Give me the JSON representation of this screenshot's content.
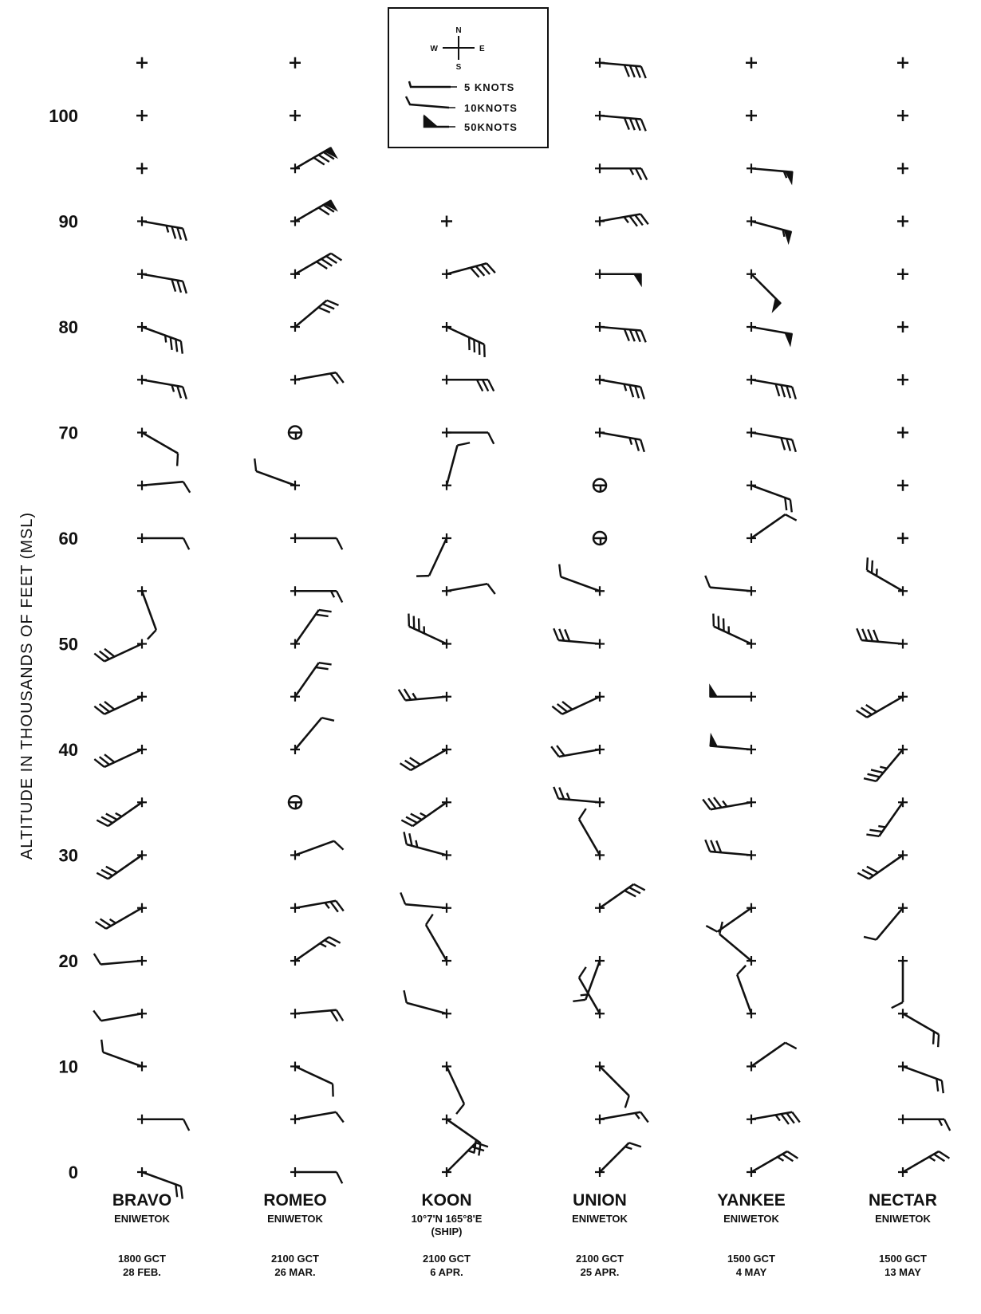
{
  "chart_data": {
    "type": "wind-barb profile",
    "ylabel": "ALTITUDE IN THOUSANDS OF FEET (MSL)",
    "ylim": [
      0,
      105
    ],
    "yticks": [
      0,
      10,
      20,
      30,
      40,
      50,
      60,
      70,
      80,
      90,
      100
    ],
    "legend": {
      "compass": {
        "n": "N",
        "s": "S",
        "e": "E",
        "w": "W"
      },
      "entries": [
        {
          "label": "5 KNOTS",
          "knots": 5
        },
        {
          "label": "10KNOTS",
          "knots": 10
        },
        {
          "label": "50KNOTS",
          "knots": 50
        }
      ]
    },
    "stations": [
      {
        "name": "BRAVO",
        "site": "ENIWETOK",
        "extra": "",
        "time": "1800 GCT",
        "date": "28 FEB.",
        "obs": [
          {
            "alt": 95,
            "calm": true
          },
          {
            "alt": 100,
            "calm": true
          },
          {
            "alt": 105,
            "calm": true
          },
          {
            "alt": 90,
            "dir": 100,
            "spd": 35
          },
          {
            "alt": 85,
            "dir": 100,
            "spd": 30
          },
          {
            "alt": 80,
            "dir": 110,
            "spd": 35
          },
          {
            "alt": 75,
            "dir": 100,
            "spd": 25
          },
          {
            "alt": 70,
            "dir": 120,
            "spd": 10
          },
          {
            "alt": 65,
            "dir": 85,
            "spd": 10
          },
          {
            "alt": 60,
            "dir": 90,
            "spd": 10
          },
          {
            "alt": 55,
            "dir": 160,
            "spd": 10
          },
          {
            "alt": 50,
            "dir": 245,
            "spd": 30
          },
          {
            "alt": 45,
            "dir": 245,
            "spd": 30
          },
          {
            "alt": 40,
            "dir": 245,
            "spd": 30
          },
          {
            "alt": 35,
            "dir": 235,
            "spd": 35
          },
          {
            "alt": 30,
            "dir": 235,
            "spd": 30
          },
          {
            "alt": 25,
            "dir": 240,
            "spd": 25
          },
          {
            "alt": 20,
            "dir": 265,
            "spd": 10
          },
          {
            "alt": 15,
            "dir": 260,
            "spd": 10
          },
          {
            "alt": 10,
            "dir": 290,
            "spd": 10
          },
          {
            "alt": 5,
            "dir": 90,
            "spd": 10
          },
          {
            "alt": 0,
            "dir": 110,
            "spd": 20
          }
        ]
      },
      {
        "name": "ROMEO",
        "site": "ENIWETOK",
        "extra": "",
        "time": "2100 GCT",
        "date": "26 MAR.",
        "obs": [
          {
            "alt": 100,
            "calm": true
          },
          {
            "alt": 105,
            "calm": true
          },
          {
            "alt": 95,
            "dir": 60,
            "spd": 80
          },
          {
            "alt": 90,
            "dir": 60,
            "spd": 70
          },
          {
            "alt": 85,
            "dir": 60,
            "spd": 40
          },
          {
            "alt": 80,
            "dir": 50,
            "spd": 30
          },
          {
            "alt": 75,
            "dir": 80,
            "spd": 20
          },
          {
            "alt": 70,
            "calm": true,
            "variable": true
          },
          {
            "alt": 65,
            "dir": 290,
            "spd": 10
          },
          {
            "alt": 60,
            "dir": 90,
            "spd": 10
          },
          {
            "alt": 55,
            "dir": 90,
            "spd": 15
          },
          {
            "alt": 50,
            "dir": 35,
            "spd": 20
          },
          {
            "alt": 45,
            "dir": 35,
            "spd": 20
          },
          {
            "alt": 40,
            "dir": 40,
            "spd": 10
          },
          {
            "alt": 35,
            "calm": true,
            "variable": true
          },
          {
            "alt": 30,
            "dir": 70,
            "spd": 10
          },
          {
            "alt": 25,
            "dir": 80,
            "spd": 25
          },
          {
            "alt": 20,
            "dir": 55,
            "spd": 25
          },
          {
            "alt": 15,
            "dir": 85,
            "spd": 20
          },
          {
            "alt": 10,
            "dir": 115,
            "spd": 10
          },
          {
            "alt": 5,
            "dir": 80,
            "spd": 10
          },
          {
            "alt": 0,
            "dir": 90,
            "spd": 10
          }
        ]
      },
      {
        "name": "KOON",
        "site": "10°7'N 165°8'E",
        "extra": "(SHIP)",
        "time": "2100 GCT",
        "date": "6 APR.",
        "obs": [
          {
            "alt": 90,
            "calm": true
          },
          {
            "alt": 85,
            "dir": 75,
            "spd": 40
          },
          {
            "alt": 80,
            "dir": 115,
            "spd": 40
          },
          {
            "alt": 75,
            "dir": 90,
            "spd": 30
          },
          {
            "alt": 70,
            "dir": 90,
            "spd": 10
          },
          {
            "alt": 65,
            "dir": 15,
            "spd": 10
          },
          {
            "alt": 60,
            "dir": 205,
            "spd": 10
          },
          {
            "alt": 55,
            "dir": 80,
            "spd": 10
          },
          {
            "alt": 50,
            "dir": 295,
            "spd": 35
          },
          {
            "alt": 45,
            "dir": 265,
            "spd": 25
          },
          {
            "alt": 40,
            "dir": 240,
            "spd": 30
          },
          {
            "alt": 35,
            "dir": 235,
            "spd": 35
          },
          {
            "alt": 30,
            "dir": 285,
            "spd": 25
          },
          {
            "alt": 25,
            "dir": 275,
            "spd": 10
          },
          {
            "alt": 20,
            "dir": 330,
            "spd": 10
          },
          {
            "alt": 15,
            "dir": 285,
            "spd": 10
          },
          {
            "alt": 10,
            "dir": 155,
            "spd": 10
          },
          {
            "alt": 5,
            "dir": 125,
            "spd": 20
          },
          {
            "alt": 0,
            "dir": 45,
            "spd": 25
          }
        ]
      },
      {
        "name": "UNION",
        "site": "ENIWETOK",
        "extra": "",
        "time": "2100 GCT",
        "date": "25 APR.",
        "obs": [
          {
            "alt": 105,
            "dir": 95,
            "spd": 40
          },
          {
            "alt": 100,
            "dir": 95,
            "spd": 40
          },
          {
            "alt": 95,
            "dir": 90,
            "spd": 25
          },
          {
            "alt": 90,
            "dir": 80,
            "spd": 35
          },
          {
            "alt": 85,
            "dir": 90,
            "spd": 50
          },
          {
            "alt": 80,
            "dir": 95,
            "spd": 40
          },
          {
            "alt": 75,
            "dir": 100,
            "spd": 35
          },
          {
            "alt": 70,
            "dir": 100,
            "spd": 25
          },
          {
            "alt": 65,
            "calm": true,
            "variable": true
          },
          {
            "alt": 60,
            "calm": true,
            "variable": true
          },
          {
            "alt": 55,
            "dir": 290,
            "spd": 10
          },
          {
            "alt": 50,
            "dir": 275,
            "spd": 30
          },
          {
            "alt": 45,
            "dir": 245,
            "spd": 30
          },
          {
            "alt": 40,
            "dir": 260,
            "spd": 20
          },
          {
            "alt": 35,
            "dir": 275,
            "spd": 25
          },
          {
            "alt": 30,
            "dir": 330,
            "spd": 10
          },
          {
            "alt": 25,
            "dir": 55,
            "spd": 30
          },
          {
            "alt": 20,
            "dir": 200,
            "spd": 15
          },
          {
            "alt": 15,
            "dir": 330,
            "spd": 10
          },
          {
            "alt": 10,
            "dir": 135,
            "spd": 10
          },
          {
            "alt": 5,
            "dir": 80,
            "spd": 15
          },
          {
            "alt": 0,
            "dir": 45,
            "spd": 15
          }
        ]
      },
      {
        "name": "YANKEE",
        "site": "ENIWETOK",
        "extra": "",
        "time": "1500 GCT",
        "date": "4 MAY",
        "obs": [
          {
            "alt": 100,
            "calm": true
          },
          {
            "alt": 105,
            "calm": true
          },
          {
            "alt": 95,
            "dir": 95,
            "spd": 55
          },
          {
            "alt": 90,
            "dir": 105,
            "spd": 55
          },
          {
            "alt": 85,
            "dir": 135,
            "spd": 50
          },
          {
            "alt": 80,
            "dir": 100,
            "spd": 50
          },
          {
            "alt": 75,
            "dir": 100,
            "spd": 40
          },
          {
            "alt": 70,
            "dir": 100,
            "spd": 30
          },
          {
            "alt": 65,
            "dir": 110,
            "spd": 20
          },
          {
            "alt": 60,
            "dir": 55,
            "spd": 10
          },
          {
            "alt": 55,
            "dir": 275,
            "spd": 10
          },
          {
            "alt": 50,
            "dir": 295,
            "spd": 35
          },
          {
            "alt": 45,
            "dir": 270,
            "spd": 50
          },
          {
            "alt": 40,
            "dir": 275,
            "spd": 50
          },
          {
            "alt": 35,
            "dir": 260,
            "spd": 35
          },
          {
            "alt": 30,
            "dir": 275,
            "spd": 30
          },
          {
            "alt": 25,
            "dir": 235,
            "spd": 10
          },
          {
            "alt": 20,
            "dir": 310,
            "spd": 10
          },
          {
            "alt": 15,
            "dir": 340,
            "spd": 10
          },
          {
            "alt": 10,
            "dir": 55,
            "spd": 10
          },
          {
            "alt": 5,
            "dir": 80,
            "spd": 35
          },
          {
            "alt": 0,
            "dir": 60,
            "spd": 25
          }
        ]
      },
      {
        "name": "NECTAR",
        "site": "ENIWETOK",
        "extra": "",
        "time": "1500 GCT",
        "date": "13 MAY",
        "obs": [
          {
            "alt": 60,
            "calm": true
          },
          {
            "alt": 65,
            "calm": true
          },
          {
            "alt": 70,
            "calm": true
          },
          {
            "alt": 75,
            "calm": true
          },
          {
            "alt": 80,
            "calm": true
          },
          {
            "alt": 85,
            "calm": true
          },
          {
            "alt": 90,
            "calm": true
          },
          {
            "alt": 95,
            "calm": true
          },
          {
            "alt": 100,
            "calm": true
          },
          {
            "alt": 105,
            "calm": true
          },
          {
            "alt": 55,
            "dir": 300,
            "spd": 25
          },
          {
            "alt": 50,
            "dir": 275,
            "spd": 40
          },
          {
            "alt": 45,
            "dir": 240,
            "spd": 30
          },
          {
            "alt": 40,
            "dir": 220,
            "spd": 35
          },
          {
            "alt": 35,
            "dir": 215,
            "spd": 25
          },
          {
            "alt": 30,
            "dir": 235,
            "spd": 30
          },
          {
            "alt": 25,
            "dir": 220,
            "spd": 10
          },
          {
            "alt": 20,
            "dir": 180,
            "spd": 10
          },
          {
            "alt": 15,
            "dir": 120,
            "spd": 20
          },
          {
            "alt": 10,
            "dir": 110,
            "spd": 20
          },
          {
            "alt": 5,
            "dir": 90,
            "spd": 15
          },
          {
            "alt": 0,
            "dir": 60,
            "spd": 25
          }
        ]
      }
    ]
  }
}
